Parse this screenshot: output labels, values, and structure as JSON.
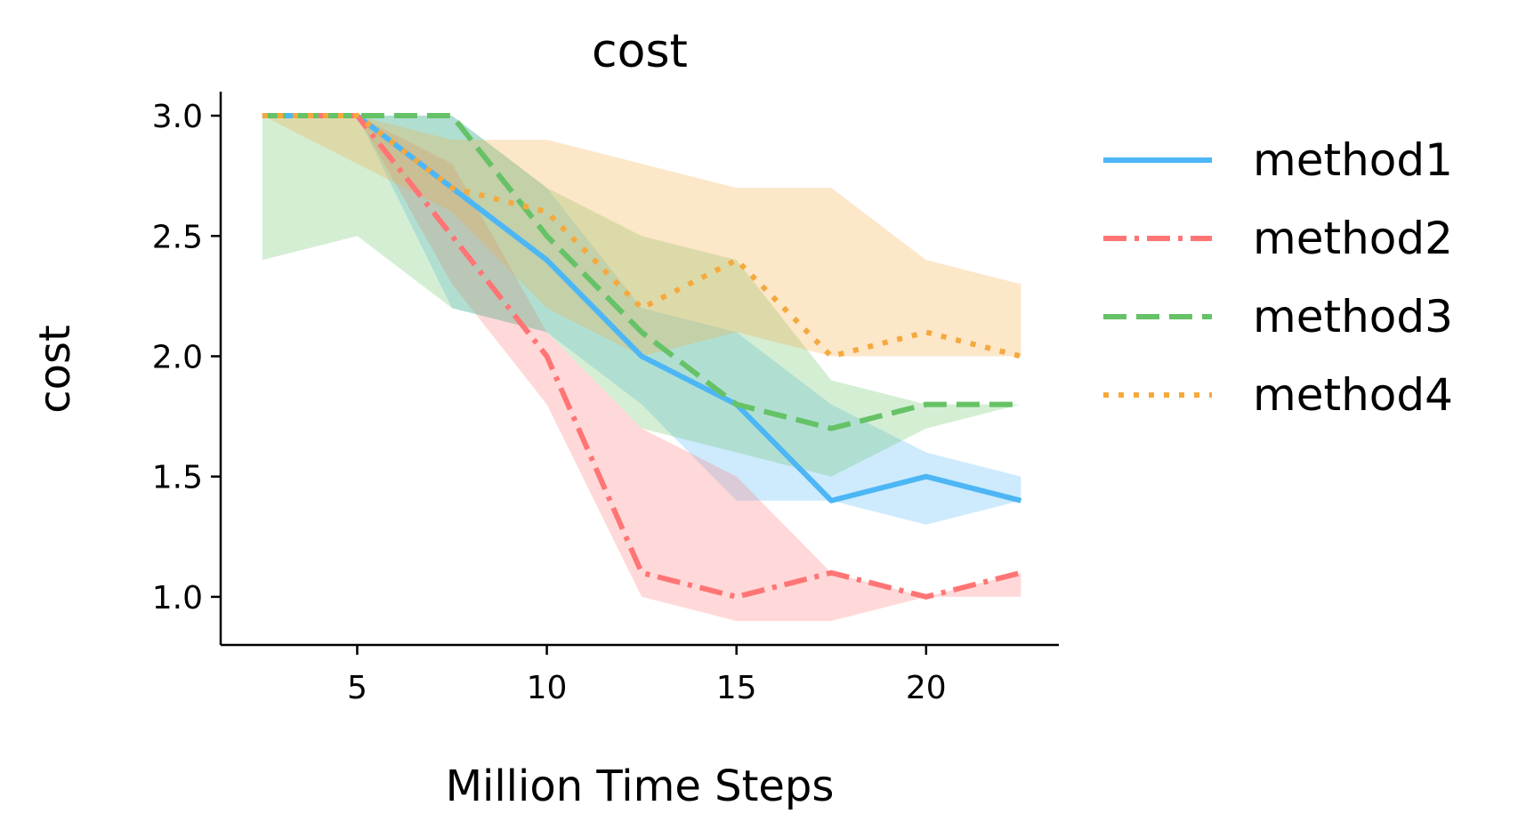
{
  "chart_data": {
    "type": "line",
    "title": "cost",
    "xlabel": "Million Time Steps",
    "ylabel": "cost",
    "xlim": [
      1.4,
      23.5
    ],
    "ylim": [
      0.8,
      3.1
    ],
    "xticks": [
      5,
      10,
      15,
      20
    ],
    "xtick_labels": [
      "5",
      "10",
      "15",
      "20"
    ],
    "yticks": [
      1.0,
      1.5,
      2.0,
      2.5,
      3.0
    ],
    "ytick_labels": [
      "1.0",
      "1.5",
      "2.0",
      "2.5",
      "3.0"
    ],
    "grid": false,
    "legend_position": "right",
    "x": [
      2.5,
      5,
      7.5,
      10,
      12.5,
      15,
      17.5,
      20,
      22.5
    ],
    "series": [
      {
        "name": "method1",
        "color": "#4DB6F5",
        "line_style": "solid",
        "values": [
          3.0,
          3.0,
          2.7,
          2.4,
          2.0,
          1.8,
          1.4,
          1.5,
          1.4
        ],
        "band_upper": [
          3.0,
          3.0,
          3.0,
          2.7,
          2.2,
          2.1,
          1.8,
          1.6,
          1.5
        ],
        "band_lower": [
          3.0,
          3.0,
          2.2,
          2.1,
          1.8,
          1.4,
          1.4,
          1.3,
          1.4
        ]
      },
      {
        "name": "method2",
        "color": "#FF7575",
        "line_style": "dashdot",
        "values": [
          3.0,
          3.0,
          2.5,
          2.0,
          1.1,
          1.0,
          1.1,
          1.0,
          1.1
        ],
        "band_upper": [
          3.0,
          3.0,
          2.8,
          2.1,
          1.7,
          1.5,
          1.1,
          1.0,
          1.1
        ],
        "band_lower": [
          3.0,
          3.0,
          2.3,
          1.8,
          1.0,
          0.9,
          0.9,
          1.0,
          1.0
        ]
      },
      {
        "name": "method3",
        "color": "#66C266",
        "line_style": "dashed",
        "values": [
          3.0,
          3.0,
          3.0,
          2.5,
          2.1,
          1.8,
          1.7,
          1.8,
          1.8
        ],
        "band_upper": [
          3.0,
          3.0,
          3.0,
          2.7,
          2.5,
          2.4,
          1.9,
          1.8,
          1.8
        ],
        "band_lower": [
          2.4,
          2.5,
          2.2,
          2.1,
          1.7,
          1.6,
          1.5,
          1.7,
          1.8
        ]
      },
      {
        "name": "method4",
        "color": "#F5A93D",
        "line_style": "dotted",
        "values": [
          3.0,
          3.0,
          2.7,
          2.6,
          2.2,
          2.4,
          2.0,
          2.1,
          2.0
        ],
        "band_upper": [
          3.0,
          3.0,
          2.9,
          2.9,
          2.8,
          2.7,
          2.7,
          2.4,
          2.3
        ],
        "band_lower": [
          3.0,
          2.8,
          2.6,
          2.2,
          2.0,
          2.1,
          2.0,
          2.0,
          2.0
        ]
      }
    ]
  }
}
